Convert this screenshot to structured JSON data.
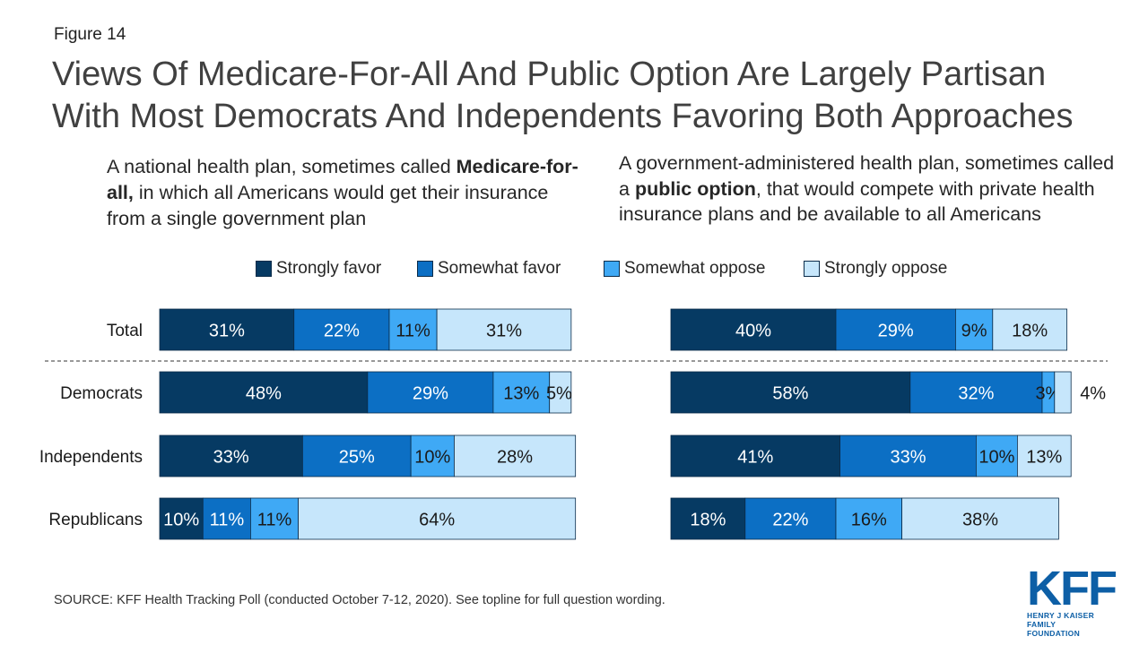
{
  "figure_label": "Figure 14",
  "title_line1": "Views Of Medicare-For-All And Public Option Are Largely Partisan",
  "title_line2": "With Most Democrats And Independents Favoring Both Approaches",
  "left_question": {
    "pre": "A national health plan, sometimes called ",
    "bold": "Medicare-for-all,",
    "post": " in which all Americans would get their insurance from a single government plan"
  },
  "right_question": {
    "pre": "A government-administered health plan, sometimes called a ",
    "bold": "public option",
    "post": ", that would compete with private health insurance plans and be available to all Americans"
  },
  "source": "SOURCE: KFF Health Tracking Poll (conducted October 7-12, 2020). See topline for full question wording.",
  "logo": {
    "main": "KFF",
    "sub_line1": "HENRY J KAISER",
    "sub_line2": "FAMILY FOUNDATION"
  },
  "colors": {
    "strongly_favor": "#063a63",
    "somewhat_favor": "#0c6fc4",
    "somewhat_oppose": "#3fa9f5",
    "strongly_oppose": "#c6e6fb",
    "label_dark": "#ffffff",
    "label_light": "#1a1a1a"
  },
  "chart_data": [
    {
      "type": "bar",
      "orientation": "horizontal",
      "stacked": true,
      "categories": [
        "Total",
        "Democrats",
        "Independents",
        "Republicans"
      ],
      "series": [
        {
          "name": "Strongly favor",
          "values": [
            31,
            48,
            33,
            10
          ]
        },
        {
          "name": "Somewhat favor",
          "values": [
            22,
            29,
            25,
            11
          ]
        },
        {
          "name": "Somewhat oppose",
          "values": [
            11,
            13,
            10,
            11
          ]
        },
        {
          "name": "Strongly oppose",
          "values": [
            31,
            5,
            28,
            64
          ]
        }
      ],
      "value_labels": [
        [
          "31%",
          "22%",
          "11%",
          "31%"
        ],
        [
          "48%",
          "29%",
          "13%",
          "5%"
        ],
        [
          "33%",
          "25%",
          "10%",
          "28%"
        ],
        [
          "10%",
          "11%",
          "11%",
          "64%"
        ]
      ],
      "legend": "top"
    },
    {
      "type": "bar",
      "orientation": "horizontal",
      "stacked": true,
      "categories": [
        "Total",
        "Democrats",
        "Independents",
        "Republicans"
      ],
      "series": [
        {
          "name": "Strongly favor",
          "values": [
            40,
            58,
            41,
            18
          ]
        },
        {
          "name": "Somewhat favor",
          "values": [
            29,
            32,
            33,
            22
          ]
        },
        {
          "name": "Somewhat oppose",
          "values": [
            9,
            3,
            10,
            16
          ]
        },
        {
          "name": "Strongly oppose",
          "values": [
            18,
            4,
            13,
            38
          ]
        }
      ],
      "value_labels": [
        [
          "40%",
          "29%",
          "9%",
          "18%"
        ],
        [
          "58%",
          "32%",
          "3%",
          "4%"
        ],
        [
          "41%",
          "33%",
          "10%",
          "13%"
        ],
        [
          "18%",
          "22%",
          "16%",
          "38%"
        ]
      ],
      "legend": "top"
    }
  ]
}
